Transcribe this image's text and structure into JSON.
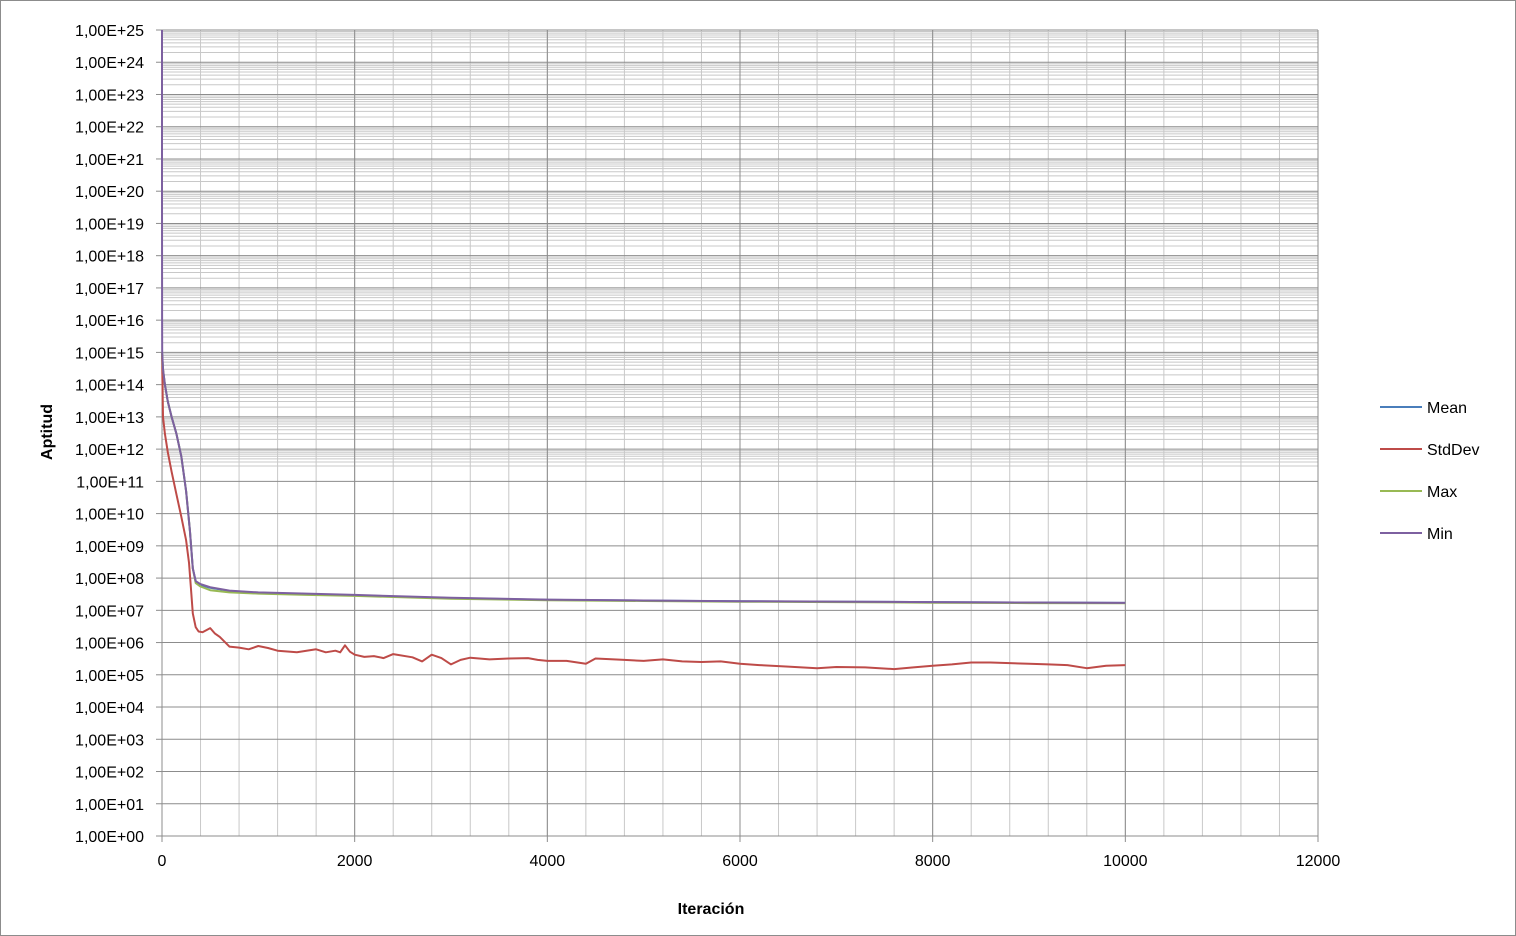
{
  "chart_data": {
    "type": "line",
    "xlabel": "Iteración",
    "ylabel": "Aptitud",
    "xlim": [
      0,
      12000
    ],
    "xticks": [
      0,
      2000,
      4000,
      6000,
      8000,
      10000,
      12000
    ],
    "x_minor_step": 400,
    "y_log_scale": true,
    "ylim_exponent": [
      0,
      25
    ],
    "ytick_labels": [
      "1,00E+00",
      "1,00E+01",
      "1,00E+02",
      "1,00E+03",
      "1,00E+04",
      "1,00E+05",
      "1,00E+06",
      "1,00E+07",
      "1,00E+08",
      "1,00E+09",
      "1,00E+10",
      "1,00E+11",
      "1,00E+12",
      "1,00E+13",
      "1,00E+14",
      "1,00E+15",
      "1,00E+16",
      "1,00E+17",
      "1,00E+18",
      "1,00E+19",
      "1,00E+20",
      "1,00E+21",
      "1,00E+22",
      "1,00E+23",
      "1,00E+24",
      "1,00E+25"
    ],
    "grid": true,
    "legend_position": "right",
    "series": [
      {
        "name": "Mean",
        "color": "#4a7ebb",
        "x": [
          0,
          10,
          30,
          60,
          100,
          150,
          200,
          250,
          290,
          320,
          350,
          400,
          500,
          700,
          1000,
          1500,
          2000,
          3000,
          4000,
          5000,
          6000,
          7000,
          8000,
          9000,
          10000
        ],
        "y": [
          1000000000000000.0,
          300000000000000.0,
          100000000000000.0,
          30000000000000.0,
          10000000000000.0,
          3000000000000.0,
          600000000000.0,
          50000000000.0,
          3000000000.0,
          200000000.0,
          80000000.0,
          60000000.0,
          50000000.0,
          40000000.0,
          35000000.0,
          32000000.0,
          29000000.0,
          24000000.0,
          21000000.0,
          20000000.0,
          19000000.0,
          18500000.0,
          18000000.0,
          17500000.0,
          17000000.0
        ]
      },
      {
        "name": "StdDev",
        "color": "#be4b48",
        "x": [
          0,
          10,
          30,
          60,
          100,
          150,
          200,
          250,
          280,
          300,
          320,
          350,
          380,
          420,
          500,
          550,
          600,
          700,
          800,
          900,
          1000,
          1100,
          1200,
          1400,
          1600,
          1700,
          1800,
          1850,
          1900,
          1950,
          2000,
          2100,
          2200,
          2300,
          2400,
          2600,
          2700,
          2800,
          2900,
          3000,
          3100,
          3200,
          3400,
          3600,
          3800,
          3900,
          4000,
          4200,
          4400,
          4500,
          4800,
          5000,
          5200,
          5400,
          5600,
          5800,
          6000,
          6200,
          6500,
          6800,
          7000,
          7300,
          7600,
          7800,
          8000,
          8200,
          8400,
          8600,
          8800,
          9000,
          9200,
          9400,
          9600,
          9800,
          10000
        ],
        "y": [
          1000000000000000.0,
          10000000000000.0,
          3000000000000.0,
          800000000000.0,
          200000000000.0,
          40000000000.0,
          8000000000.0,
          1500000000.0,
          300000000.0,
          50000000.0,
          8000000.0,
          3000000.0,
          2200000.0,
          2100000.0,
          2800000.0,
          1900000.0,
          1500000.0,
          750000.0,
          700000.0,
          620000.0,
          780000.0,
          680000.0,
          560000.0,
          500000.0,
          620000.0,
          500000.0,
          560000.0,
          500000.0,
          820000.0,
          520000.0,
          420000.0,
          360000.0,
          380000.0,
          330000.0,
          440000.0,
          350000.0,
          260000.0,
          420000.0,
          330000.0,
          210000.0,
          290000.0,
          340000.0,
          300000.0,
          320000.0,
          330000.0,
          290000.0,
          270000.0,
          270000.0,
          220000.0,
          320000.0,
          290000.0,
          270000.0,
          300000.0,
          260000.0,
          250000.0,
          260000.0,
          220000.0,
          200000.0,
          180000.0,
          160000.0,
          175000.0,
          170000.0,
          150000.0,
          170000.0,
          190000.0,
          210000.0,
          240000.0,
          240000.0,
          230000.0,
          220000.0,
          210000.0,
          200000.0,
          160000.0,
          190000.0,
          200000.0
        ]
      },
      {
        "name": "Max",
        "color": "#98b954",
        "x": [
          0,
          10,
          30,
          60,
          100,
          150,
          200,
          250,
          290,
          320,
          350,
          400,
          500,
          700,
          1000,
          1500,
          2000,
          3000,
          4000,
          5000,
          6000,
          7000,
          8000,
          9000,
          10000
        ],
        "y": [
          1000000000000000.0,
          300000000000000.0,
          100000000000000.0,
          30000000000000.0,
          10000000000000.0,
          3000000000000.0,
          600000000000.0,
          50000000000.0,
          3000000000.0,
          200000000.0,
          70000000.0,
          55000000.0,
          42000000.0,
          36000000.0,
          33000000.0,
          30000000.0,
          28000000.0,
          23000000.0,
          20500000.0,
          19500000.0,
          18500000.0,
          18000000.0,
          17200000.0,
          16800000.0,
          16500000.0
        ]
      },
      {
        "name": "Min",
        "color": "#7d60a0",
        "x": [
          0,
          0.5,
          1,
          2,
          10,
          30,
          60,
          100,
          150,
          200,
          250,
          290,
          320,
          350,
          400,
          500,
          700,
          1000,
          1500,
          2000,
          3000,
          4000,
          5000,
          6000,
          7000,
          8000,
          9000,
          10000
        ],
        "y": [
          1e+25,
          1e+20,
          1e+16,
          1000000000000000.0,
          300000000000000.0,
          100000000000000.0,
          30000000000000.0,
          10000000000000.0,
          3000000000000.0,
          600000000000.0,
          50000000000.0,
          3000000000.0,
          200000000.0,
          80000000.0,
          65000000.0,
          52000000.0,
          41000000.0,
          36000000.0,
          33000000.0,
          30000000.0,
          24500000.0,
          21500000.0,
          20200000.0,
          19200000.0,
          18700000.0,
          18000000.0,
          17500000.0,
          17000000.0
        ]
      }
    ]
  }
}
